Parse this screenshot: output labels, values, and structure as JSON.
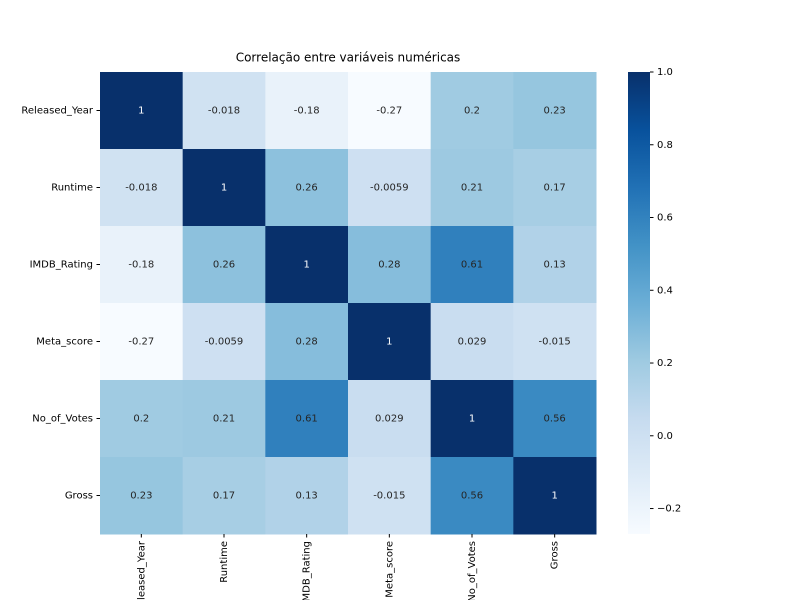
{
  "chart_data": {
    "type": "heatmap",
    "title": "Correlação entre variáveis numéricas",
    "categories": [
      "Released_Year",
      "Runtime",
      "IMDB_Rating",
      "Meta_score",
      "No_of_Votes",
      "Gross"
    ],
    "values": [
      [
        1,
        -0.018,
        -0.18,
        -0.27,
        0.2,
        0.23
      ],
      [
        -0.018,
        1,
        0.26,
        -0.0059,
        0.21,
        0.17
      ],
      [
        -0.18,
        0.26,
        1,
        0.28,
        0.61,
        0.13
      ],
      [
        -0.27,
        -0.0059,
        0.28,
        1,
        0.029,
        -0.015
      ],
      [
        0.2,
        0.21,
        0.61,
        0.029,
        1,
        0.56
      ],
      [
        0.23,
        0.17,
        0.13,
        -0.015,
        0.56,
        1
      ]
    ],
    "colors": [
      "#f7fbff",
      "#deebf7",
      "#c6dbef",
      "#9ecae1",
      "#6baed6",
      "#4292c6",
      "#2171b5",
      "#08519c",
      "#08306b"
    ],
    "clim": [
      -0.27,
      1
    ],
    "cticks": [
      {
        "value": -0.2,
        "label": "−0.2"
      },
      {
        "value": 0,
        "label": "0.0"
      },
      0.2,
      0.4,
      0.6,
      0.8,
      {
        "value": 1,
        "label": "1.0"
      }
    ]
  }
}
